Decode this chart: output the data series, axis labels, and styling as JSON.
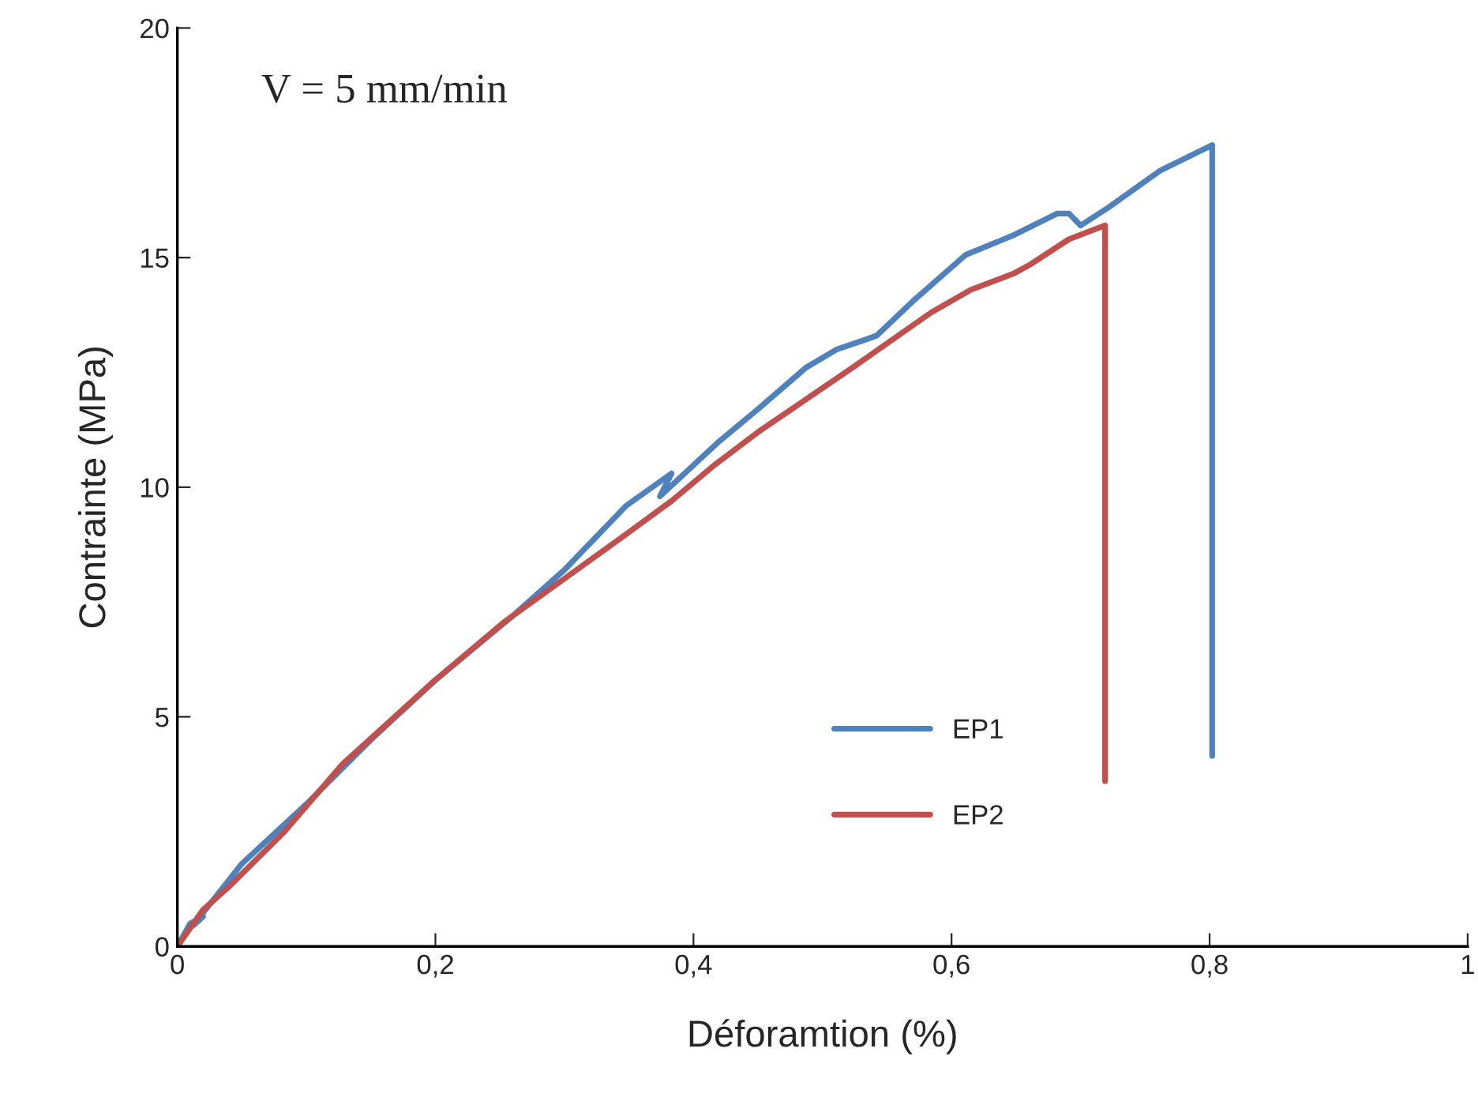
{
  "chart_data": {
    "type": "line",
    "xlabel": "Déforamtion (%)",
    "ylabel": "Contrainte (MPa)",
    "annotations": [
      "V = 5 mm/min"
    ],
    "xlim": [
      0,
      1
    ],
    "ylim": [
      0,
      20
    ],
    "xticks": [
      0,
      {
        "value": 0.2,
        "label": "0,2"
      },
      {
        "value": 0.4,
        "label": "0,4"
      },
      {
        "value": 0.6,
        "label": "0,6"
      },
      {
        "value": 0.8,
        "label": "0,8"
      },
      1
    ],
    "yticks": [
      0,
      5,
      10,
      15,
      20
    ],
    "grid": false,
    "legend": "lower right",
    "marker": "none",
    "line_style": "solid",
    "series": [
      {
        "name": "EP1",
        "color": "#4f81bd",
        "x": [
          0,
          0.01,
          0.02,
          0.012,
          0.05,
          0.1,
          0.15,
          0.2,
          0.23,
          0.26,
          0.3,
          0.348,
          0.383,
          0.374,
          0.42,
          0.45,
          0.487,
          0.511,
          0.532,
          0.542,
          0.572,
          0.611,
          0.649,
          0.682,
          0.691,
          0.7,
          0.722,
          0.762,
          0.802,
          0.802
        ],
        "values": [
          0,
          0.5,
          0.65,
          0.45,
          1.8,
          3.1,
          4.5,
          5.8,
          6.5,
          7.2,
          8.2,
          9.6,
          10.3,
          9.8,
          11.0,
          11.7,
          12.6,
          13.0,
          13.2,
          13.3,
          14.1,
          15.06,
          15.5,
          15.96,
          15.96,
          15.7,
          16.1,
          16.9,
          17.45,
          4.15
        ]
      },
      {
        "name": "EP2",
        "color": "#c0504d",
        "x": [
          0,
          0.005,
          0.02,
          0.04,
          0.083,
          0.128,
          0.197,
          0.254,
          0.307,
          0.348,
          0.383,
          0.417,
          0.45,
          0.523,
          0.584,
          0.615,
          0.648,
          0.661,
          0.691,
          0.719,
          0.719
        ],
        "values": [
          0,
          0.2,
          0.8,
          1.3,
          2.5,
          3.97,
          5.73,
          7.08,
          8.15,
          8.98,
          9.7,
          10.5,
          11.2,
          12.6,
          13.8,
          14.3,
          14.65,
          14.85,
          15.4,
          15.7,
          3.6
        ]
      }
    ]
  }
}
